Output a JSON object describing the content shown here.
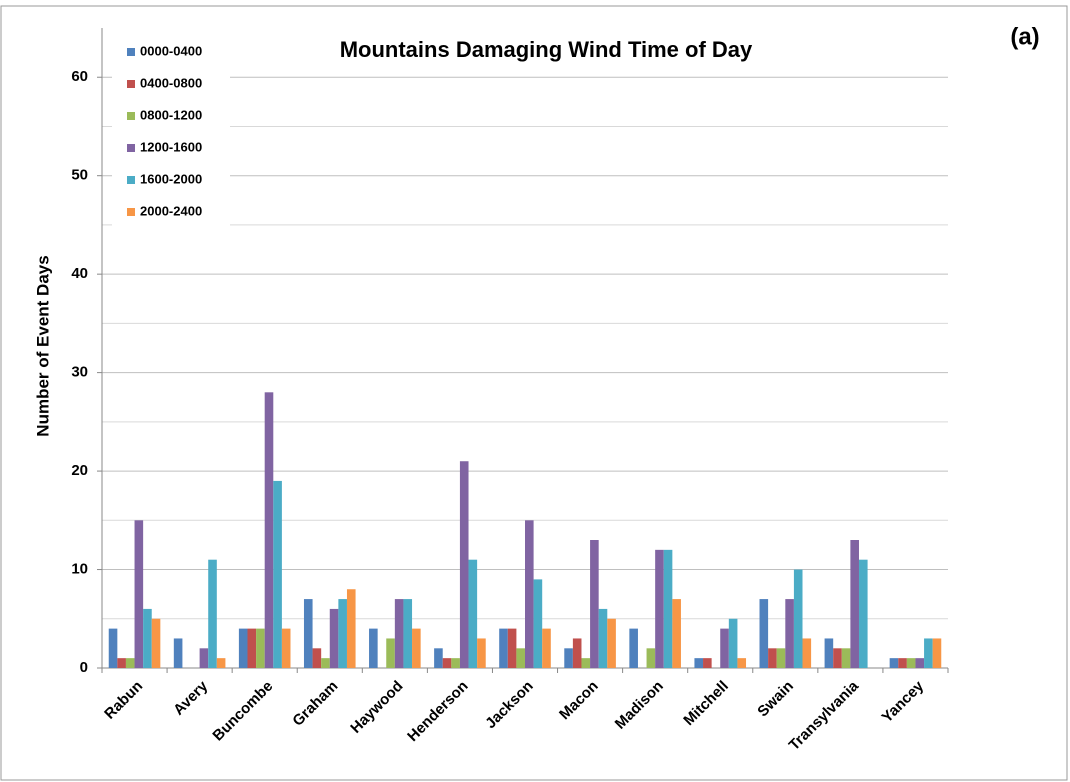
{
  "chart_data": {
    "type": "bar",
    "title": "Mountains Damaging Wind Time of Day",
    "panel_label": "(a)",
    "y_label": "Number of Event Days",
    "categories": [
      "Rabun",
      "Avery",
      "Buncombe",
      "Graham",
      "Haywood",
      "Henderson",
      "Jackson",
      "Macon",
      "Madison",
      "Mitchell",
      "Swain",
      "Transylvania",
      "Yancey"
    ],
    "series": [
      {
        "name": "0000-0400",
        "color": "#4f81bd",
        "values": [
          4,
          3,
          4,
          7,
          4,
          2,
          4,
          2,
          4,
          1,
          7,
          3,
          1
        ]
      },
      {
        "name": "0400-0800",
        "color": "#c0504d",
        "values": [
          1,
          0,
          4,
          2,
          0,
          1,
          4,
          3,
          0,
          1,
          2,
          2,
          1
        ]
      },
      {
        "name": "0800-1200",
        "color": "#9bbb59",
        "values": [
          1,
          0,
          4,
          1,
          3,
          1,
          2,
          1,
          2,
          0,
          2,
          2,
          1
        ]
      },
      {
        "name": "1200-1600",
        "color": "#8064a2",
        "values": [
          15,
          2,
          28,
          6,
          7,
          21,
          15,
          13,
          12,
          4,
          7,
          13,
          1
        ]
      },
      {
        "name": "1600-2000",
        "color": "#4bacc6",
        "values": [
          6,
          11,
          19,
          7,
          7,
          11,
          9,
          6,
          12,
          5,
          10,
          11,
          3
        ]
      },
      {
        "name": "2000-2400",
        "color": "#f79646",
        "values": [
          5,
          1,
          4,
          8,
          4,
          3,
          4,
          5,
          7,
          1,
          3,
          0,
          3
        ]
      }
    ],
    "ylim": [
      0,
      65
    ],
    "yticks": [
      0,
      10,
      20,
      30,
      40,
      50,
      60
    ],
    "minor_yticks": [
      5,
      15,
      25,
      35,
      45,
      55
    ],
    "grid": true,
    "legend": "upper left"
  }
}
